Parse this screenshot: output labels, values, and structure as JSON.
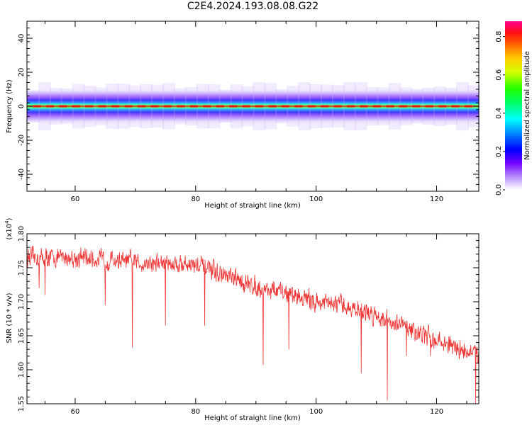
{
  "title": "C2E4.2024.193.08.08.G22",
  "chart_data": [
    {
      "type": "heatmap",
      "xlabel": "Height of straight line (km)",
      "ylabel": "Frequency (Hz)",
      "xlim": [
        52,
        127
      ],
      "ylim": [
        -50,
        50
      ],
      "xticks": [
        60,
        80,
        100,
        120
      ],
      "xtick_labels": [
        "60",
        "80",
        "100",
        "120"
      ],
      "yticks": [
        -40,
        -20,
        0,
        20,
        40
      ],
      "ytick_labels": [
        "-40",
        "-20",
        "0",
        "20",
        "40"
      ],
      "band_center_hz": 0,
      "band_halfwidth_hz": 4,
      "colorbar": {
        "label": "Normalized spectral amplitude",
        "range": [
          0.0,
          0.88
        ],
        "ticks": [
          0.0,
          0.2,
          0.4,
          0.6,
          0.8
        ],
        "tick_labels": [
          "0.0",
          "0.2",
          "0.4",
          "0.6",
          "0.8"
        ]
      }
    },
    {
      "type": "line",
      "xlabel": "Height of straight line (km)",
      "ylabel": "SNR (10 * v/v)",
      "scale_label": "(x10",
      "scale_exp": "4",
      "scale_close": ")",
      "xlim": [
        52,
        127
      ],
      "ylim": [
        1.55,
        1.8
      ],
      "xticks": [
        60,
        80,
        100,
        120
      ],
      "xtick_labels": [
        "60",
        "80",
        "100",
        "120"
      ],
      "yticks": [
        1.55,
        1.6,
        1.65,
        1.7,
        1.75,
        1.8
      ],
      "ytick_labels": [
        "1.55",
        "1.60",
        "1.65",
        "1.70",
        "1.75",
        "1.80"
      ],
      "series": [
        {
          "name": "SNR",
          "color": "#ee3333",
          "trend_x": [
            52,
            60,
            70,
            80,
            85,
            90,
            95,
            100,
            105,
            110,
            115,
            120,
            125,
            127
          ],
          "trend_y": [
            1.765,
            1.765,
            1.758,
            1.755,
            1.737,
            1.722,
            1.713,
            1.7,
            1.693,
            1.68,
            1.662,
            1.643,
            1.627,
            1.62
          ],
          "dips_x": [
            54,
            55,
            65,
            69.5,
            75,
            81.5,
            91.2,
            95.5,
            107.5,
            111.8,
            115,
            119,
            126.5
          ],
          "dips_y": [
            1.72,
            1.71,
            1.695,
            1.633,
            1.665,
            1.665,
            1.607,
            1.63,
            1.595,
            1.555,
            1.62,
            1.62,
            1.55
          ]
        }
      ]
    }
  ]
}
